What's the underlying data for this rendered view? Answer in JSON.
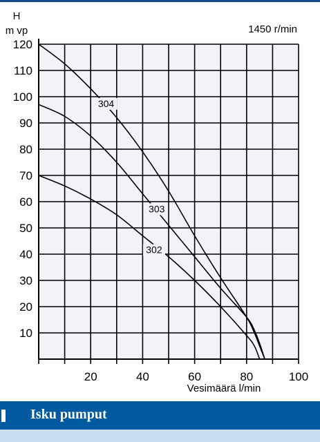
{
  "chart_data": {
    "type": "line",
    "ylabel_line1": "H",
    "ylabel_line2": "m vp",
    "speed_label": "1450  r/min",
    "xlabel": "Vesimäärä  l/min",
    "xlim": [
      0,
      100
    ],
    "ylim": [
      0,
      120
    ],
    "x_ticks": [
      20,
      40,
      60,
      80,
      100
    ],
    "y_ticks": [
      10,
      20,
      30,
      40,
      50,
      60,
      70,
      80,
      90,
      100,
      110,
      120
    ],
    "grid": true,
    "series": [
      {
        "name": "304",
        "x": [
          0,
          10,
          20,
          30,
          40,
          50,
          60,
          70,
          80,
          83,
          85,
          87
        ],
        "y": [
          120,
          112.5,
          103,
          92,
          79,
          64,
          47,
          31,
          16,
          10,
          5,
          0
        ]
      },
      {
        "name": "303",
        "x": [
          0,
          10,
          20,
          30,
          40,
          50,
          60,
          70,
          80,
          83,
          85,
          87
        ],
        "y": [
          97,
          92.5,
          85,
          75,
          63,
          51,
          39,
          27,
          16,
          11,
          6,
          0
        ]
      },
      {
        "name": "302",
        "x": [
          0,
          10,
          20,
          30,
          40,
          50,
          60,
          70,
          80,
          83,
          85
        ],
        "y": [
          70,
          66,
          61,
          55,
          47,
          39,
          30,
          20,
          9,
          5,
          0
        ]
      }
    ]
  },
  "footer": {
    "title": "Isku pumput"
  }
}
